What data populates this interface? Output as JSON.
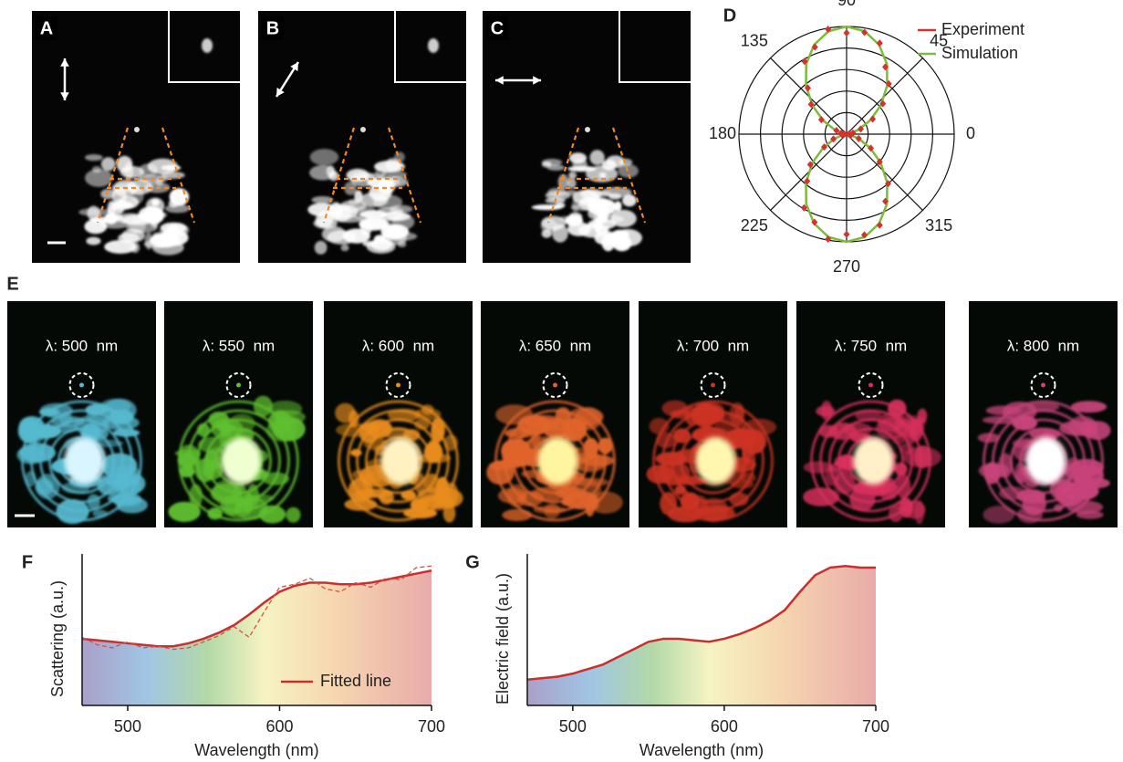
{
  "image_panels": [
    {
      "label": "A"
    },
    {
      "label": "B"
    },
    {
      "label": "C"
    }
  ],
  "spectral_panel": {
    "label": "E",
    "captions": [
      "λ: 500  nm",
      "λ: 550  nm",
      "λ: 600  nm",
      "λ: 650  nm",
      "λ: 700  nm",
      "λ: 750  nm",
      "λ: 800  nm"
    ]
  },
  "chart_data": [
    {
      "type": "polar",
      "label": "D",
      "series": [
        {
          "name": "Experiment",
          "color": "#d7312b",
          "marker": "diamond",
          "theta": [
            0,
            10,
            20,
            30,
            40,
            50,
            60,
            70,
            80,
            90,
            100,
            110,
            120,
            130,
            140,
            150,
            160,
            170,
            180,
            190,
            200,
            210,
            220,
            230,
            240,
            250,
            260,
            270,
            280,
            290,
            300,
            310,
            320,
            330,
            340,
            350
          ],
          "r": [
            0.02,
            0.06,
            0.14,
            0.28,
            0.44,
            0.61,
            0.72,
            0.9,
            0.96,
            0.94,
            0.99,
            0.86,
            0.78,
            0.56,
            0.43,
            0.27,
            0.1,
            0.05,
            0.02,
            0.04,
            0.13,
            0.24,
            0.44,
            0.57,
            0.79,
            0.87,
            0.99,
            0.93,
            0.95,
            0.9,
            0.72,
            0.6,
            0.4,
            0.26,
            0.12,
            0.04
          ]
        },
        {
          "name": "Simulation",
          "color": "#7dbb3a",
          "theta": [
            0,
            10,
            20,
            30,
            40,
            50,
            60,
            70,
            80,
            90,
            100,
            110,
            120,
            130,
            140,
            150,
            160,
            170,
            180,
            190,
            200,
            210,
            220,
            230,
            240,
            250,
            260,
            270,
            280,
            290,
            300,
            310,
            320,
            330,
            340,
            350,
            360
          ],
          "r": [
            0,
            0.03,
            0.117,
            0.25,
            0.413,
            0.587,
            0.75,
            0.883,
            0.97,
            1,
            0.97,
            0.883,
            0.75,
            0.587,
            0.413,
            0.25,
            0.117,
            0.03,
            0,
            0.03,
            0.117,
            0.25,
            0.413,
            0.587,
            0.75,
            0.883,
            0.97,
            1,
            0.97,
            0.883,
            0.75,
            0.587,
            0.413,
            0.25,
            0.117,
            0.03,
            0
          ]
        }
      ],
      "rlim": [
        0,
        1
      ],
      "rticks": [
        0.2,
        0.4,
        0.6,
        0.8,
        1
      ],
      "thetaticks": [
        0,
        45,
        90,
        135,
        180,
        225,
        270,
        315
      ]
    },
    {
      "type": "area",
      "label": "F",
      "x": [
        470,
        480,
        490,
        500,
        510,
        520,
        530,
        540,
        550,
        560,
        570,
        580,
        590,
        600,
        610,
        620,
        630,
        640,
        650,
        660,
        670,
        680,
        690,
        700
      ],
      "series": [
        {
          "name": "Fitted line",
          "color": "#c8302c",
          "values": [
            0.44,
            0.43,
            0.42,
            0.41,
            0.4,
            0.39,
            0.39,
            0.41,
            0.44,
            0.48,
            0.53,
            0.6,
            0.68,
            0.75,
            0.79,
            0.81,
            0.81,
            0.8,
            0.8,
            0.81,
            0.83,
            0.85,
            0.87,
            0.89
          ]
        },
        {
          "color": "#d9504a",
          "dashed": true,
          "values": [
            0.45,
            0.4,
            0.38,
            0.42,
            0.38,
            0.39,
            0.37,
            0.38,
            0.42,
            0.46,
            0.52,
            0.45,
            0.62,
            0.78,
            0.8,
            0.84,
            0.77,
            0.75,
            0.81,
            0.78,
            0.84,
            0.83,
            0.91,
            0.92
          ]
        }
      ],
      "xlim": [
        470,
        700
      ],
      "ylim": [
        0,
        1
      ],
      "xticks": [
        500,
        600,
        700
      ],
      "xlabel": "Wavelength (nm)",
      "ylabel": "Scattering (a.u.)",
      "legend": "lower right"
    },
    {
      "type": "area",
      "label": "G",
      "x": [
        470,
        480,
        490,
        500,
        510,
        520,
        530,
        540,
        550,
        560,
        570,
        580,
        590,
        600,
        610,
        620,
        630,
        640,
        650,
        660,
        670,
        680,
        690,
        700
      ],
      "series": [
        {
          "color": "#c8302c",
          "values": [
            0.17,
            0.18,
            0.19,
            0.21,
            0.24,
            0.27,
            0.32,
            0.37,
            0.42,
            0.44,
            0.44,
            0.43,
            0.42,
            0.44,
            0.47,
            0.51,
            0.56,
            0.63,
            0.75,
            0.86,
            0.91,
            0.92,
            0.91,
            0.91
          ]
        }
      ],
      "xlim": [
        470,
        700
      ],
      "ylim": [
        0,
        1
      ],
      "xticks": [
        500,
        600,
        700
      ],
      "xlabel": "Wavelength (nm)",
      "ylabel": "Electric field (a.u.)"
    }
  ]
}
